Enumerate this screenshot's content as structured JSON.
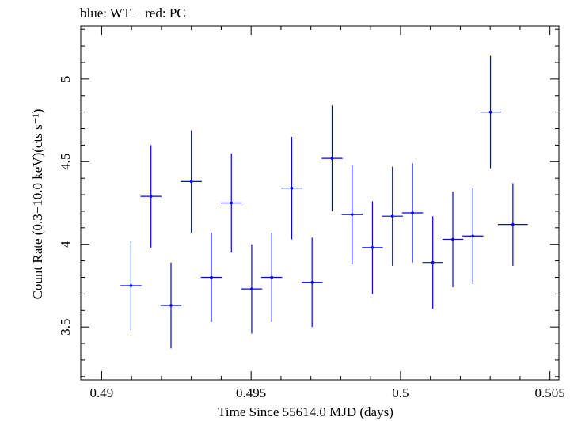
{
  "chart_data": {
    "type": "scatter",
    "title": "blue: WT − red: PC",
    "xlabel": "Time Since 55614.0 MJD (days)",
    "ylabel": "Count Rate (0.3−10.0 keV)(cts s⁻¹)",
    "xlim": [
      0.4893,
      0.5053
    ],
    "ylim": [
      3.18,
      5.32
    ],
    "x_ticks": [
      0.49,
      0.495,
      0.5,
      0.505
    ],
    "x_tick_labels": [
      "0.49",
      "0.495",
      "0.5",
      "0.505"
    ],
    "y_ticks": [
      3.5,
      4,
      4.5,
      5
    ],
    "y_tick_labels": [
      "3.5",
      "4",
      "4.5",
      "5"
    ],
    "grid": false,
    "series": [
      {
        "color": "#0000ff",
        "points": [
          {
            "x": 0.49098,
            "y": 3.75,
            "xerr": 0.00035,
            "yerr": 0.27
          },
          {
            "x": 0.49165,
            "y": 4.29,
            "xerr": 0.00035,
            "yerr": 0.31
          },
          {
            "x": 0.49232,
            "y": 3.63,
            "xerr": 0.00035,
            "yerr": 0.26
          },
          {
            "x": 0.493,
            "y": 4.38,
            "xerr": 0.00035,
            "yerr": 0.31
          },
          {
            "x": 0.49367,
            "y": 3.8,
            "xerr": 0.00035,
            "yerr": 0.27
          },
          {
            "x": 0.49434,
            "y": 4.25,
            "xerr": 0.00035,
            "yerr": 0.3
          },
          {
            "x": 0.49502,
            "y": 3.73,
            "xerr": 0.00035,
            "yerr": 0.27
          },
          {
            "x": 0.49569,
            "y": 3.8,
            "xerr": 0.00035,
            "yerr": 0.27
          },
          {
            "x": 0.49636,
            "y": 4.34,
            "xerr": 0.00035,
            "yerr": 0.31
          },
          {
            "x": 0.49704,
            "y": 3.77,
            "xerr": 0.00035,
            "yerr": 0.27
          },
          {
            "x": 0.49771,
            "y": 4.52,
            "xerr": 0.00035,
            "yerr": 0.32
          },
          {
            "x": 0.49838,
            "y": 4.18,
            "xerr": 0.00035,
            "yerr": 0.3
          },
          {
            "x": 0.49906,
            "y": 3.98,
            "xerr": 0.00035,
            "yerr": 0.28
          },
          {
            "x": 0.49973,
            "y": 4.17,
            "xerr": 0.00035,
            "yerr": 0.3
          },
          {
            "x": 0.5004,
            "y": 4.19,
            "xerr": 0.00035,
            "yerr": 0.3
          },
          {
            "x": 0.50108,
            "y": 3.89,
            "xerr": 0.00035,
            "yerr": 0.28
          },
          {
            "x": 0.50175,
            "y": 4.03,
            "xerr": 0.00035,
            "yerr": 0.29
          },
          {
            "x": 0.50242,
            "y": 4.05,
            "xerr": 0.00035,
            "yerr": 0.29
          },
          {
            "x": 0.50301,
            "y": 4.8,
            "xerr": 0.00035,
            "yerr": 0.34
          },
          {
            "x": 0.50376,
            "y": 4.12,
            "xerr": 0.0005,
            "yerr": 0.25
          }
        ]
      }
    ]
  }
}
